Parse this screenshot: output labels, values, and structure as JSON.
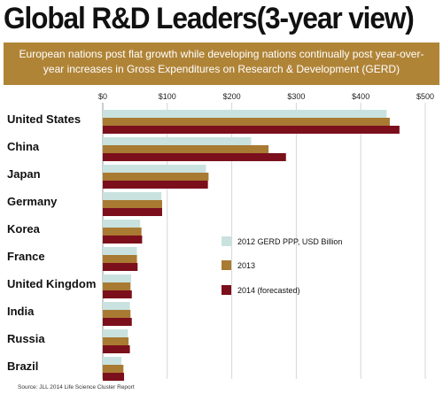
{
  "title": "Global R&D Leaders(3-year view)",
  "subtitle": "European nations post flat growth while developing nations continually post year-over-year increases in Gross Expenditures on Research & Development (GERD)",
  "source": "Source: JLL 2014 Life Science Cluster Report",
  "colors": {
    "banner": "#b08437",
    "s2012": "#c9e2df",
    "s2013": "#a87a32",
    "s2014": "#7b0f1b"
  },
  "chart_data": {
    "type": "bar",
    "orientation": "horizontal",
    "title": "Global R&D Leaders(3-year view)",
    "subtitle": "European nations post flat growth while developing nations continually post year-over-year increases in Gross Expenditures on Research & Development (GERD)",
    "categories": [
      "United States",
      "China",
      "Japan",
      "Germany",
      "Korea",
      "France",
      "United Kingdom",
      "India",
      "Russia",
      "Brazil"
    ],
    "series": [
      {
        "name": "2012 GERD PPP, USD Billion",
        "values": [
          440,
          230,
          160,
          91,
          58,
          53,
          44,
          42,
          39,
          29
        ]
      },
      {
        "name": "2013",
        "values": [
          445,
          257,
          164,
          92,
          60,
          53,
          43,
          43,
          40,
          32
        ]
      },
      {
        "name": "2014 (forecasted)",
        "values": [
          460,
          284,
          163,
          92,
          61,
          54,
          45,
          45,
          42,
          33
        ]
      }
    ],
    "xticks": [
      "$0",
      "$100",
      "$200",
      "$300",
      "$400",
      "$500"
    ],
    "xlim": [
      0,
      500
    ],
    "grid": true,
    "legend_position": "center-right"
  }
}
